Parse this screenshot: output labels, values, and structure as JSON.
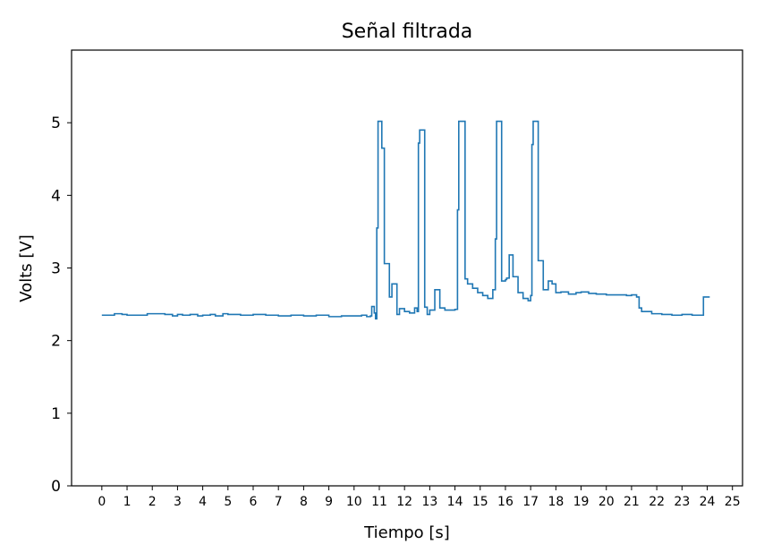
{
  "chart_data": {
    "type": "line",
    "title": "Señal filtrada",
    "xlabel": "Tiempo [s]",
    "ylabel": "Volts [V]",
    "xlim": [
      -1.2,
      25.4
    ],
    "ylim": [
      0,
      6.0
    ],
    "xticks": [
      "0",
      "1",
      "2",
      "3",
      "4",
      "5",
      "6",
      "7",
      "8",
      "9",
      "10",
      "11",
      "12",
      "13",
      "14",
      "15",
      "16",
      "17",
      "18",
      "19",
      "20",
      "21",
      "22",
      "23",
      "24",
      "25"
    ],
    "yticks": [
      "0",
      "1",
      "2",
      "3",
      "4",
      "5"
    ],
    "grid": false,
    "legend": "none",
    "series": [
      {
        "color": "#1f77b4",
        "x": [
          0.0,
          0.4,
          0.5,
          0.8,
          1.0,
          1.6,
          1.8,
          2.3,
          2.5,
          2.8,
          3.0,
          3.2,
          3.5,
          3.8,
          4.0,
          4.3,
          4.5,
          4.8,
          5.0,
          5.5,
          6.0,
          6.5,
          7.0,
          7.5,
          8.0,
          8.5,
          9.0,
          9.5,
          10.0,
          10.3,
          10.5,
          10.65,
          10.7,
          10.8,
          10.85,
          10.9,
          10.95,
          11.0,
          11.05,
          11.1,
          11.2,
          11.3,
          11.4,
          11.5,
          11.7,
          11.8,
          12.0,
          12.2,
          12.4,
          12.5,
          12.55,
          12.6,
          12.7,
          12.8,
          12.9,
          13.0,
          13.2,
          13.4,
          13.6,
          13.8,
          14.0,
          14.1,
          14.15,
          14.4,
          14.5,
          14.7,
          14.9,
          15.1,
          15.3,
          15.5,
          15.6,
          15.65,
          15.85,
          16.0,
          16.05,
          16.15,
          16.3,
          16.5,
          16.7,
          16.9,
          17.0,
          17.05,
          17.1,
          17.3,
          17.5,
          17.7,
          17.85,
          18.0,
          18.2,
          18.5,
          18.8,
          19.0,
          19.3,
          19.6,
          20.0,
          20.4,
          20.8,
          21.0,
          21.2,
          21.3,
          21.4,
          21.8,
          22.2,
          22.6,
          23.0,
          23.4,
          23.8,
          23.85,
          24.1
        ],
        "y": [
          2.35,
          2.35,
          2.37,
          2.36,
          2.35,
          2.35,
          2.37,
          2.37,
          2.36,
          2.34,
          2.36,
          2.35,
          2.36,
          2.34,
          2.35,
          2.36,
          2.34,
          2.37,
          2.36,
          2.35,
          2.36,
          2.35,
          2.34,
          2.35,
          2.34,
          2.35,
          2.33,
          2.34,
          2.34,
          2.35,
          2.33,
          2.34,
          2.47,
          2.38,
          2.3,
          3.55,
          5.02,
          5.02,
          5.02,
          4.65,
          3.06,
          3.06,
          2.6,
          2.78,
          2.36,
          2.44,
          2.4,
          2.38,
          2.45,
          2.4,
          4.72,
          4.9,
          4.9,
          2.46,
          2.36,
          2.42,
          2.7,
          2.45,
          2.42,
          2.42,
          2.43,
          3.8,
          5.02,
          2.85,
          2.78,
          2.72,
          2.66,
          2.62,
          2.58,
          2.7,
          3.4,
          5.02,
          2.82,
          2.84,
          2.86,
          3.18,
          2.88,
          2.66,
          2.58,
          2.55,
          2.62,
          4.7,
          5.02,
          3.1,
          2.7,
          2.82,
          2.78,
          2.66,
          2.67,
          2.64,
          2.66,
          2.67,
          2.65,
          2.64,
          2.63,
          2.63,
          2.62,
          2.63,
          2.6,
          2.45,
          2.4,
          2.37,
          2.36,
          2.35,
          2.36,
          2.35,
          2.35,
          2.6,
          2.6
        ]
      }
    ]
  }
}
